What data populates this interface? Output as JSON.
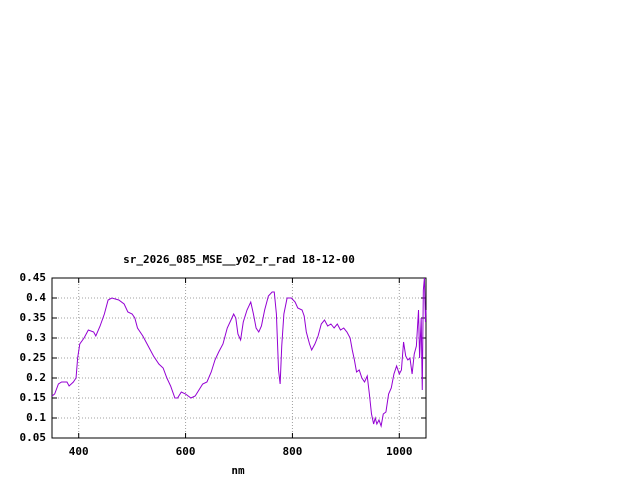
{
  "chart_data": {
    "type": "line",
    "title": "sr_2026_085_MSE__y02_r_rad 18-12-00",
    "x_label": "nm",
    "x": [
      350,
      355,
      362,
      368,
      378,
      382,
      390,
      395,
      398,
      402,
      410,
      418,
      428,
      432,
      440,
      448,
      455,
      462,
      475,
      485,
      492,
      500,
      505,
      510,
      520,
      530,
      540,
      550,
      558,
      565,
      572,
      580,
      585,
      592,
      600,
      610,
      618,
      625,
      632,
      640,
      648,
      655,
      662,
      670,
      678,
      685,
      690,
      694,
      698,
      703,
      708,
      715,
      722,
      727,
      732,
      737,
      742,
      748,
      755,
      762,
      766,
      770,
      774,
      777,
      780,
      784,
      790,
      798,
      805,
      810,
      818,
      822,
      826,
      832,
      836,
      842,
      848,
      854,
      860,
      866,
      872,
      878,
      884,
      890,
      896,
      902,
      908,
      912,
      916,
      920,
      925,
      930,
      935,
      940,
      944,
      948,
      952,
      955,
      958,
      962,
      966,
      970,
      975,
      980,
      985,
      990,
      995,
      1000,
      1004,
      1008,
      1012,
      1016,
      1020,
      1024,
      1028,
      1032,
      1036,
      1038,
      1041,
      1043,
      1045,
      1047,
      1049,
      1050
    ],
    "series": [
      {
        "color": "#9400d3",
        "values": [
          0.155,
          0.16,
          0.185,
          0.19,
          0.19,
          0.18,
          0.19,
          0.2,
          0.25,
          0.285,
          0.3,
          0.32,
          0.315,
          0.305,
          0.33,
          0.36,
          0.395,
          0.4,
          0.395,
          0.385,
          0.365,
          0.36,
          0.35,
          0.325,
          0.305,
          0.28,
          0.255,
          0.235,
          0.225,
          0.2,
          0.18,
          0.15,
          0.15,
          0.165,
          0.16,
          0.15,
          0.155,
          0.17,
          0.185,
          0.19,
          0.215,
          0.245,
          0.265,
          0.285,
          0.325,
          0.345,
          0.36,
          0.35,
          0.31,
          0.295,
          0.34,
          0.37,
          0.39,
          0.36,
          0.325,
          0.315,
          0.33,
          0.37,
          0.405,
          0.415,
          0.415,
          0.36,
          0.22,
          0.185,
          0.28,
          0.36,
          0.4,
          0.4,
          0.39,
          0.375,
          0.37,
          0.355,
          0.315,
          0.285,
          0.27,
          0.285,
          0.305,
          0.335,
          0.345,
          0.33,
          0.335,
          0.325,
          0.335,
          0.32,
          0.325,
          0.315,
          0.3,
          0.27,
          0.245,
          0.215,
          0.22,
          0.2,
          0.19,
          0.205,
          0.16,
          0.11,
          0.085,
          0.1,
          0.085,
          0.095,
          0.08,
          0.11,
          0.115,
          0.16,
          0.175,
          0.21,
          0.23,
          0.21,
          0.22,
          0.29,
          0.255,
          0.245,
          0.25,
          0.21,
          0.26,
          0.28,
          0.37,
          0.25,
          0.35,
          0.17,
          0.42,
          0.45,
          0.34,
          0.37
        ]
      }
    ],
    "xlim": [
      350,
      1050
    ],
    "xticks": [
      400,
      600,
      800,
      1000
    ],
    "ylim": [
      0.05,
      0.45
    ],
    "yticks": [
      0.05,
      0.1,
      0.15,
      0.2,
      0.25,
      0.3,
      0.35,
      0.4,
      0.45
    ],
    "grid": true
  }
}
